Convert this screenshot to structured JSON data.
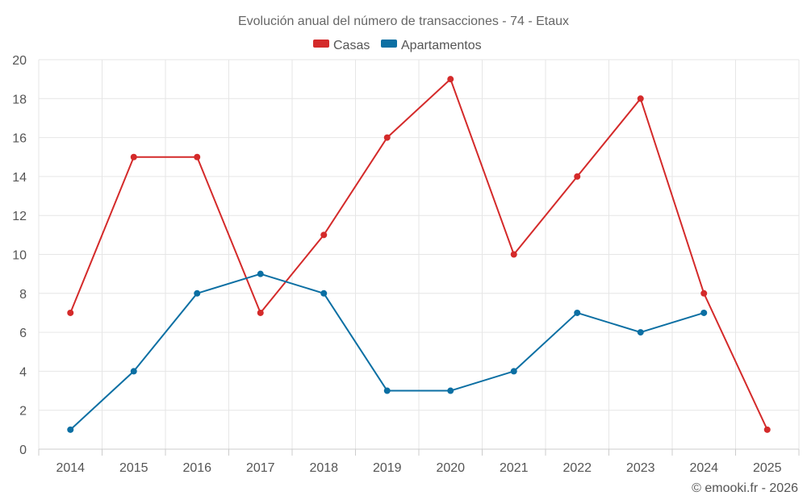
{
  "chart_data": {
    "type": "line",
    "title": "Evolución anual del número de transacciones - 74 - Etaux",
    "categories": [
      "2014",
      "2015",
      "2016",
      "2017",
      "2018",
      "2019",
      "2020",
      "2021",
      "2022",
      "2023",
      "2024",
      "2025"
    ],
    "series": [
      {
        "name": "Casas",
        "color": "#d42a2a",
        "values": [
          7,
          15,
          15,
          7,
          11,
          16,
          19,
          10,
          14,
          18,
          8,
          1
        ]
      },
      {
        "name": "Apartamentos",
        "color": "#0b6fa3",
        "values": [
          1,
          4,
          8,
          9,
          8,
          3,
          3,
          4,
          7,
          6,
          7,
          null
        ]
      }
    ],
    "ylim": [
      0,
      20
    ],
    "yticks": [
      0,
      2,
      4,
      6,
      8,
      10,
      12,
      14,
      16,
      18,
      20
    ],
    "xlabel": "",
    "ylabel": "",
    "grid": true,
    "legend_position": "top-center"
  },
  "credit": "© emooki.fr - 2026"
}
